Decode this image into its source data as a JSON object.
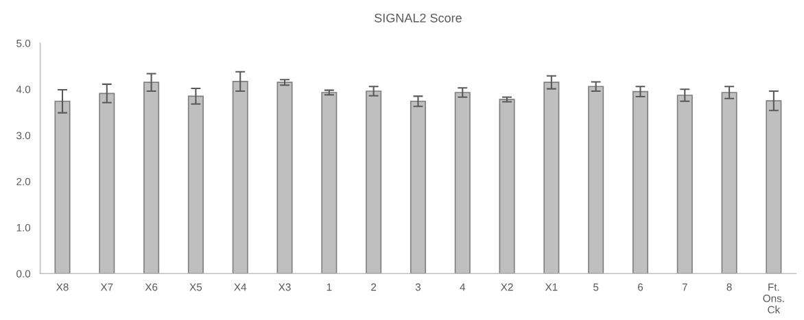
{
  "chart_data": {
    "type": "bar",
    "title": "SIGNAL2 Score",
    "categories": [
      "X8",
      "X7",
      "X6",
      "X5",
      "X4",
      "X3",
      "1",
      "2",
      "3",
      "4",
      "X2",
      "X1",
      "5",
      "6",
      "7",
      "8",
      "Ft.\nOns.\nCk"
    ],
    "values": [
      3.74,
      3.91,
      4.15,
      3.85,
      4.17,
      4.15,
      3.93,
      3.96,
      3.74,
      3.93,
      3.78,
      4.15,
      4.06,
      3.95,
      3.87,
      3.93,
      3.75
    ],
    "errors": [
      0.25,
      0.2,
      0.19,
      0.17,
      0.21,
      0.06,
      0.05,
      0.1,
      0.11,
      0.1,
      0.05,
      0.14,
      0.1,
      0.11,
      0.13,
      0.13,
      0.21
    ],
    "color": "#bfbfbf",
    "ylim": [
      0,
      5
    ],
    "yticks": [
      {
        "value": 0,
        "label": "0.0"
      },
      {
        "value": 1,
        "label": "1.0"
      },
      {
        "value": 2,
        "label": "2.0"
      },
      {
        "value": 3,
        "label": "3.0"
      },
      {
        "value": 4,
        "label": "4.0"
      },
      {
        "value": 5,
        "label": "5.0"
      }
    ],
    "grid": false,
    "legend": false
  }
}
